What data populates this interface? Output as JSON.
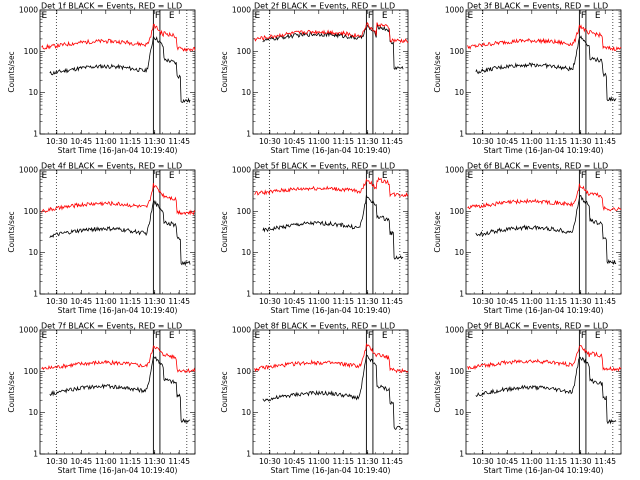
{
  "figure": {
    "ylabel": "Counts/sec",
    "xlabel": "Start Time (16-Jan-04 10:19:40)",
    "x_tick_labels": [
      "10:30",
      "10:45",
      "11:00",
      "11:15",
      "11:30",
      "11:45"
    ],
    "y_tick_labels": [
      "1",
      "10",
      "100",
      "1000"
    ],
    "colors": {
      "events": "#000000",
      "lld": "#ff0000",
      "axis": "#000000"
    }
  },
  "chart_data": [
    {
      "type": "line",
      "title": "Det 1f BLACK = Events, RED = LLD",
      "flags": [
        "E",
        "F",
        "E"
      ],
      "x_range_minutes": [
        10.0,
        90.0
      ],
      "ylim": [
        1,
        1000
      ],
      "y_scale": "log",
      "xlabel": "Start Time (16-Jan-04 10:19:40)",
      "ylabel": "Counts/sec",
      "series": [
        {
          "key": "events",
          "color": "#000000",
          "base": 32,
          "amp": 1.35,
          "peak": 230
        },
        {
          "key": "lld",
          "color": "#ff0000",
          "base": 140,
          "amp": 1.25,
          "peak": 430
        }
      ]
    },
    {
      "type": "line",
      "title": "Det 2f BLACK = Events, RED = LLD",
      "flags": [
        "E",
        "F",
        "E"
      ],
      "x_range_minutes": [
        10.0,
        90.0
      ],
      "ylim": [
        1,
        1000
      ],
      "y_scale": "log",
      "xlabel": "Start Time (16-Jan-04 10:19:40)",
      "ylabel": "Counts/sec",
      "series": [
        {
          "key": "events",
          "color": "#000000",
          "base": 200,
          "amp": 1.3,
          "peak": 420
        },
        {
          "key": "lld",
          "color": "#ff0000",
          "base": 230,
          "amp": 1.3,
          "peak": 460
        }
      ]
    },
    {
      "type": "line",
      "title": "Det 3f BLACK = Events, RED = LLD",
      "flags": [
        "E",
        "F",
        "E"
      ],
      "x_range_minutes": [
        10.0,
        90.0
      ],
      "ylim": [
        1,
        1000
      ],
      "y_scale": "log",
      "xlabel": "Start Time (16-Jan-04 10:19:40)",
      "ylabel": "Counts/sec",
      "series": [
        {
          "key": "events",
          "color": "#000000",
          "base": 35,
          "amp": 1.35,
          "peak": 230
        },
        {
          "key": "lld",
          "color": "#ff0000",
          "base": 145,
          "amp": 1.25,
          "peak": 430
        }
      ]
    },
    {
      "type": "line",
      "title": "Det 4f BLACK = Events, RED = LLD",
      "flags": [
        "E",
        "F",
        "E"
      ],
      "x_range_minutes": [
        10.0,
        90.0
      ],
      "ylim": [
        1,
        1000
      ],
      "y_scale": "log",
      "xlabel": "Start Time (16-Jan-04 10:19:40)",
      "ylabel": "Counts/sec",
      "series": [
        {
          "key": "events",
          "color": "#000000",
          "base": 28,
          "amp": 1.35,
          "peak": 170
        },
        {
          "key": "lld",
          "color": "#ff0000",
          "base": 120,
          "amp": 1.3,
          "peak": 430
        }
      ]
    },
    {
      "type": "line",
      "title": "Det 5f BLACK = Events, RED = LLD",
      "flags": [
        "E",
        "F",
        "E"
      ],
      "x_range_minutes": [
        10.0,
        90.0
      ],
      "ylim": [
        1,
        1000
      ],
      "y_scale": "log",
      "xlabel": "Start Time (16-Jan-04 10:19:40)",
      "ylabel": "Counts/sec",
      "series": [
        {
          "key": "events",
          "color": "#000000",
          "base": 38,
          "amp": 1.35,
          "peak": 230
        },
        {
          "key": "lld",
          "color": "#ff0000",
          "base": 300,
          "amp": 1.2,
          "peak": 600
        }
      ]
    },
    {
      "type": "line",
      "title": "Det 6f BLACK = Events, RED = LLD",
      "flags": [
        "E",
        "F",
        "E"
      ],
      "x_range_minutes": [
        10.0,
        90.0
      ],
      "ylim": [
        1,
        1000
      ],
      "y_scale": "log",
      "xlabel": "Start Time (16-Jan-04 10:19:40)",
      "ylabel": "Counts/sec",
      "series": [
        {
          "key": "events",
          "color": "#000000",
          "base": 30,
          "amp": 1.35,
          "peak": 230
        },
        {
          "key": "lld",
          "color": "#ff0000",
          "base": 140,
          "amp": 1.25,
          "peak": 430
        }
      ]
    },
    {
      "type": "line",
      "title": "Det 7f BLACK = Events, RED = LLD",
      "flags": [
        "E",
        "F",
        "E"
      ],
      "x_range_minutes": [
        10.0,
        90.0
      ],
      "ylim": [
        1,
        1000
      ],
      "y_scale": "log",
      "xlabel": "Start Time (16-Jan-04 10:19:40)",
      "ylabel": "Counts/sec",
      "series": [
        {
          "key": "events",
          "color": "#000000",
          "base": 32,
          "amp": 1.35,
          "peak": 230
        },
        {
          "key": "lld",
          "color": "#ff0000",
          "base": 130,
          "amp": 1.25,
          "peak": 430
        }
      ]
    },
    {
      "type": "line",
      "title": "Det 8f BLACK = Events, RED = LLD",
      "flags": [
        "E",
        "F",
        "E"
      ],
      "x_range_minutes": [
        10.0,
        90.0
      ],
      "ylim": [
        1,
        1000
      ],
      "y_scale": "log",
      "xlabel": "Start Time (16-Jan-04 10:19:40)",
      "ylabel": "Counts/sec",
      "series": [
        {
          "key": "events",
          "color": "#000000",
          "base": 22,
          "amp": 1.35,
          "peak": 230
        },
        {
          "key": "lld",
          "color": "#ff0000",
          "base": 130,
          "amp": 1.25,
          "peak": 430
        }
      ]
    },
    {
      "type": "line",
      "title": "Det 9f BLACK = Events, RED = LLD",
      "flags": [
        "E",
        "F",
        "E"
      ],
      "x_range_minutes": [
        10.0,
        90.0
      ],
      "ylim": [
        1,
        1000
      ],
      "y_scale": "log",
      "xlabel": "Start Time (16-Jan-04 10:19:40)",
      "ylabel": "Counts/sec",
      "series": [
        {
          "key": "events",
          "color": "#000000",
          "base": 30,
          "amp": 1.35,
          "peak": 230
        },
        {
          "key": "lld",
          "color": "#ff0000",
          "base": 140,
          "amp": 1.25,
          "peak": 430
        }
      ]
    }
  ]
}
